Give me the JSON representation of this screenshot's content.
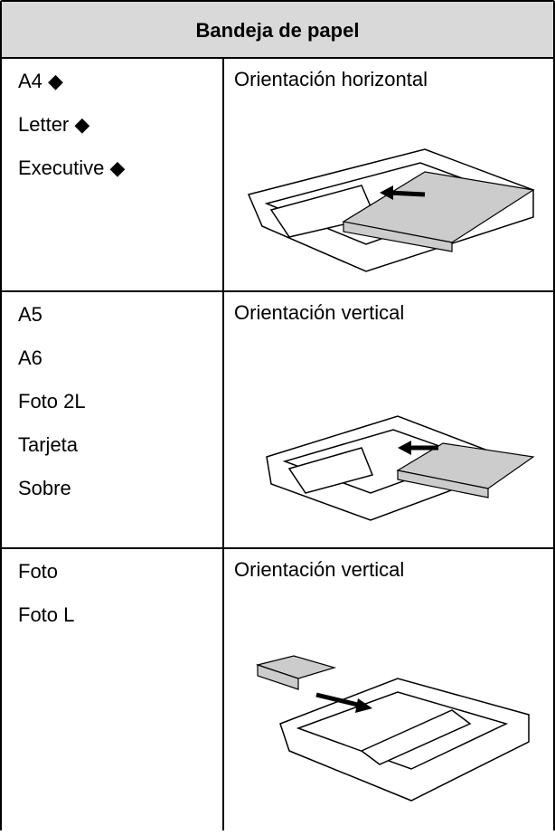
{
  "table": {
    "header": "Bandeja de papel",
    "rows": [
      {
        "sizes": [
          "A4 ◆",
          "Letter ◆",
          "Executive ◆"
        ],
        "orientation": "Orientación horizontal"
      },
      {
        "sizes": [
          "A5",
          "A6",
          "Foto 2L",
          "Tarjeta",
          "Sobre"
        ],
        "orientation": "Orientación vertical"
      },
      {
        "sizes": [
          "Foto",
          "Foto L"
        ],
        "orientation": "Orientación vertical"
      }
    ]
  }
}
